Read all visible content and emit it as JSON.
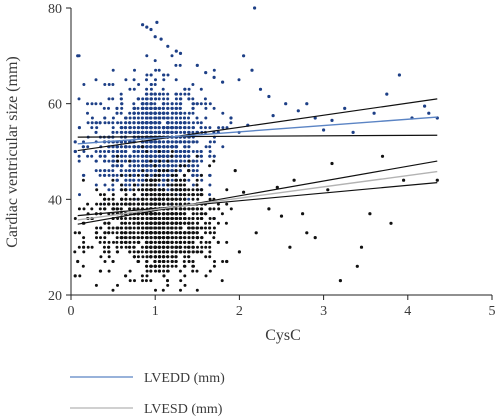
{
  "chart_data": {
    "type": "scatter",
    "xlabel": "CysC",
    "ylabel": "Cardiac ventricular size (mm)",
    "xlim": [
      0,
      5
    ],
    "ylim": [
      20,
      80
    ],
    "x_ticks": [
      "0",
      "1",
      "2",
      "3",
      "4",
      "5"
    ],
    "y_ticks": [
      "20",
      "40",
      "60",
      "80"
    ],
    "grid": false,
    "legend_position": "bottom-left",
    "series": [
      {
        "name": "LVEDD (mm)",
        "color": "#1d3f86",
        "fit_color": "#5b84c4",
        "fit": {
          "x": [
            0.08,
            4.35
          ],
          "y": [
            51.6,
            57.2
          ]
        },
        "ci_upper": {
          "x": [
            0.08,
            4.35
          ],
          "y": [
            50.2,
            61.0
          ]
        },
        "ci_lower": {
          "x": [
            0.08,
            4.35
          ],
          "y": [
            53.0,
            53.4
          ]
        },
        "cluster": {
          "x_mode": 0.85,
          "x_spread": 0.35,
          "y_center": 52,
          "y_spread": 5.5
        },
        "points": [
          [
            0.08,
            70
          ],
          [
            0.85,
            76.5
          ],
          [
            0.9,
            76
          ],
          [
            0.95,
            75.5
          ],
          [
            1.0,
            74
          ],
          [
            1.02,
            77
          ],
          [
            1.07,
            73.5
          ],
          [
            1.15,
            72
          ],
          [
            1.25,
            71
          ],
          [
            1.3,
            70.5
          ],
          [
            1.5,
            68
          ],
          [
            1.6,
            66.5
          ],
          [
            1.7,
            65.5
          ],
          [
            1.8,
            64.5
          ],
          [
            2.05,
            70
          ],
          [
            2.15,
            67
          ],
          [
            2.18,
            80
          ],
          [
            2.25,
            63
          ],
          [
            2.35,
            61.5
          ],
          [
            2.55,
            60
          ],
          [
            2.7,
            58.5
          ],
          [
            2.9,
            57
          ],
          [
            3.1,
            56.5
          ],
          [
            3.25,
            59
          ],
          [
            3.35,
            54
          ],
          [
            3.6,
            58
          ],
          [
            3.75,
            62
          ],
          [
            3.9,
            66
          ],
          [
            4.05,
            57
          ],
          [
            4.2,
            59.5
          ],
          [
            4.25,
            58
          ],
          [
            4.35,
            57
          ],
          [
            1.9,
            57
          ],
          [
            2.1,
            55.5
          ],
          [
            2.4,
            57.5
          ],
          [
            0.05,
            52
          ],
          [
            0.1,
            55
          ],
          [
            0.05,
            50
          ],
          [
            3.0,
            54.5
          ],
          [
            2.8,
            60
          ]
        ]
      },
      {
        "name": "LVESD (mm)",
        "color": "#111111",
        "fit_color": "#b3b3b3",
        "fit": {
          "x": [
            0.08,
            4.35
          ],
          "y": [
            35.7,
            45.8
          ]
        },
        "ci_upper": {
          "x": [
            0.08,
            4.35
          ],
          "y": [
            34.8,
            48.0
          ]
        },
        "ci_lower": {
          "x": [
            0.08,
            4.35
          ],
          "y": [
            36.6,
            43.5
          ]
        },
        "cluster": {
          "x_mode": 0.9,
          "x_spread": 0.35,
          "y_center": 35,
          "y_spread": 5.0
        },
        "points": [
          [
            0.05,
            24
          ],
          [
            0.08,
            27
          ],
          [
            0.1,
            33
          ],
          [
            0.15,
            30
          ],
          [
            1.85,
            27
          ],
          [
            2.0,
            29
          ],
          [
            2.2,
            33
          ],
          [
            2.35,
            38
          ],
          [
            2.5,
            36.5
          ],
          [
            2.75,
            37
          ],
          [
            2.8,
            33
          ],
          [
            2.9,
            32
          ],
          [
            3.05,
            42
          ],
          [
            3.2,
            23
          ],
          [
            3.4,
            26
          ],
          [
            3.45,
            30
          ],
          [
            3.55,
            37
          ],
          [
            3.8,
            35
          ],
          [
            3.95,
            44
          ],
          [
            4.35,
            44
          ],
          [
            3.7,
            49
          ],
          [
            2.65,
            44
          ],
          [
            2.45,
            42.5
          ],
          [
            1.95,
            46
          ],
          [
            2.05,
            41.5
          ],
          [
            3.1,
            47.5
          ],
          [
            1.75,
            31
          ],
          [
            2.6,
            30
          ]
        ]
      }
    ]
  }
}
